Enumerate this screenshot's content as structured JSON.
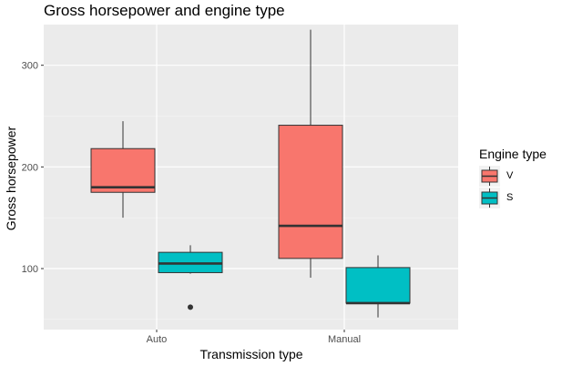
{
  "chart_data": {
    "type": "boxplot",
    "title": "Gross horsepower and engine type",
    "xlabel": "Transmission type",
    "ylabel": "Gross horsepower",
    "categories": [
      "Auto",
      "Manual"
    ],
    "ylim": [
      40,
      340
    ],
    "y_ticks": [
      100,
      200,
      300
    ],
    "y_minor_ticks": [
      50,
      150,
      250
    ],
    "grid": true,
    "legend": {
      "title": "Engine type",
      "position": "right"
    },
    "series": [
      {
        "name": "V",
        "color": "#F8766D",
        "boxes": [
          {
            "category": "Auto",
            "whisker_low": 150,
            "q1": 175,
            "median": 180,
            "q3": 218,
            "whisker_high": 245,
            "outliers": []
          },
          {
            "category": "Manual",
            "whisker_low": 91,
            "q1": 110,
            "median": 142,
            "q3": 241,
            "whisker_high": 335,
            "outliers": []
          }
        ]
      },
      {
        "name": "S",
        "color": "#00BFC4",
        "boxes": [
          {
            "category": "Auto",
            "whisker_low": 95,
            "q1": 96,
            "median": 105,
            "q3": 116,
            "whisker_high": 123,
            "outliers": [
              62
            ]
          },
          {
            "category": "Manual",
            "whisker_low": 52,
            "q1": 66,
            "median": 66,
            "q3": 101,
            "whisker_high": 113,
            "outliers": []
          }
        ]
      }
    ]
  }
}
